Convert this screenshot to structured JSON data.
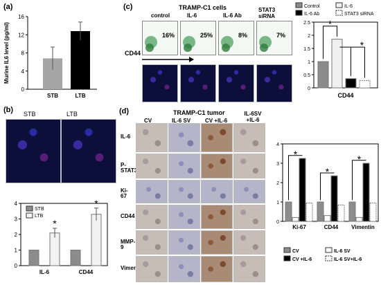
{
  "panels": {
    "a": {
      "label": "(a)"
    },
    "b": {
      "label": "(b)",
      "images": [
        "STB",
        "LTB"
      ]
    },
    "c": {
      "label": "(c)",
      "title": "TRAMP-C1 cells",
      "flow_labels": [
        "control",
        "IL-6",
        "IL-6 Ab",
        "STAT3 siRNA"
      ],
      "flow_pcts": [
        "16%",
        "25%",
        "8%",
        "7%"
      ],
      "axis_label": "CD44"
    },
    "d": {
      "label": "(d)",
      "title": "TRAMP-C1 tumor",
      "col_labels": [
        "CV",
        "IL-6 SV",
        "CV +IL-6",
        "IL-6SV +IL-6"
      ],
      "row_labels": [
        "IL-6",
        "P-STAT3",
        "Ki-67",
        "CD44",
        "MMP-9",
        "Vimentin"
      ]
    }
  },
  "chart_data": [
    {
      "id": "a",
      "type": "bar",
      "categories": [
        "STB",
        "LTB"
      ],
      "values": [
        6.8,
        12.8
      ],
      "errors": [
        2.5,
        2.0
      ],
      "colors": [
        "#a6a6a6",
        "#000000"
      ],
      "ylabel": "Murine IL6 level (pg/ml)",
      "ylim": [
        0,
        16
      ],
      "yticks": [
        "0",
        "4",
        "8",
        "12",
        "16"
      ]
    },
    {
      "id": "b",
      "type": "bar",
      "categories": [
        "IL-6",
        "CD44"
      ],
      "series": [
        {
          "name": "STB",
          "values": [
            1.0,
            1.0
          ],
          "errors": [
            0,
            0
          ],
          "color": "#8c8c8c"
        },
        {
          "name": "LTB",
          "values": [
            2.1,
            3.3
          ],
          "errors": [
            0.3,
            0.4
          ],
          "color": "#f2f2f2"
        }
      ],
      "ylim": [
        0,
        4
      ],
      "yticks": [
        "0",
        "1",
        "2",
        "3",
        "4"
      ],
      "star": "*"
    },
    {
      "id": "c",
      "type": "bar",
      "categories": [
        "CD44"
      ],
      "series": [
        {
          "name": "Control",
          "values": [
            1.0
          ],
          "color": "#8c8c8c"
        },
        {
          "name": "IL-6",
          "values": [
            1.85
          ],
          "color": "#f0f0f0"
        },
        {
          "name": "IL-6 Ab",
          "values": [
            0.35
          ],
          "color": "#000000"
        },
        {
          "name": "STAT3 siRNA",
          "values": [
            0.28
          ],
          "color": "#ffffff",
          "dashed": true
        }
      ],
      "ylim": [
        0,
        2.5
      ],
      "yticks": [
        "0",
        "0.5",
        "1",
        "1.5",
        "2",
        "2.5"
      ],
      "star": "*",
      "xlabel": "CD44"
    },
    {
      "id": "d",
      "type": "bar",
      "categories": [
        "Ki-67",
        "CD44",
        "Vimentin"
      ],
      "series": [
        {
          "name": "CV",
          "values": [
            1.0,
            1.0,
            1.0
          ],
          "color": "#8c8c8c"
        },
        {
          "name": "IL-6 SV",
          "values": [
            0.2,
            0.3,
            0.2
          ],
          "color": "#ffffff"
        },
        {
          "name": "CV +IL-6",
          "values": [
            3.25,
            2.35,
            3.0
          ],
          "color": "#000000"
        },
        {
          "name": "IL-6 SV+IL-6",
          "values": [
            0.95,
            0.85,
            0.95
          ],
          "color": "#ffffff",
          "dashed": true
        }
      ],
      "ylim": [
        0,
        4
      ],
      "yticks": [
        "0",
        "1",
        "2",
        "3",
        "4"
      ],
      "star": "*"
    }
  ]
}
